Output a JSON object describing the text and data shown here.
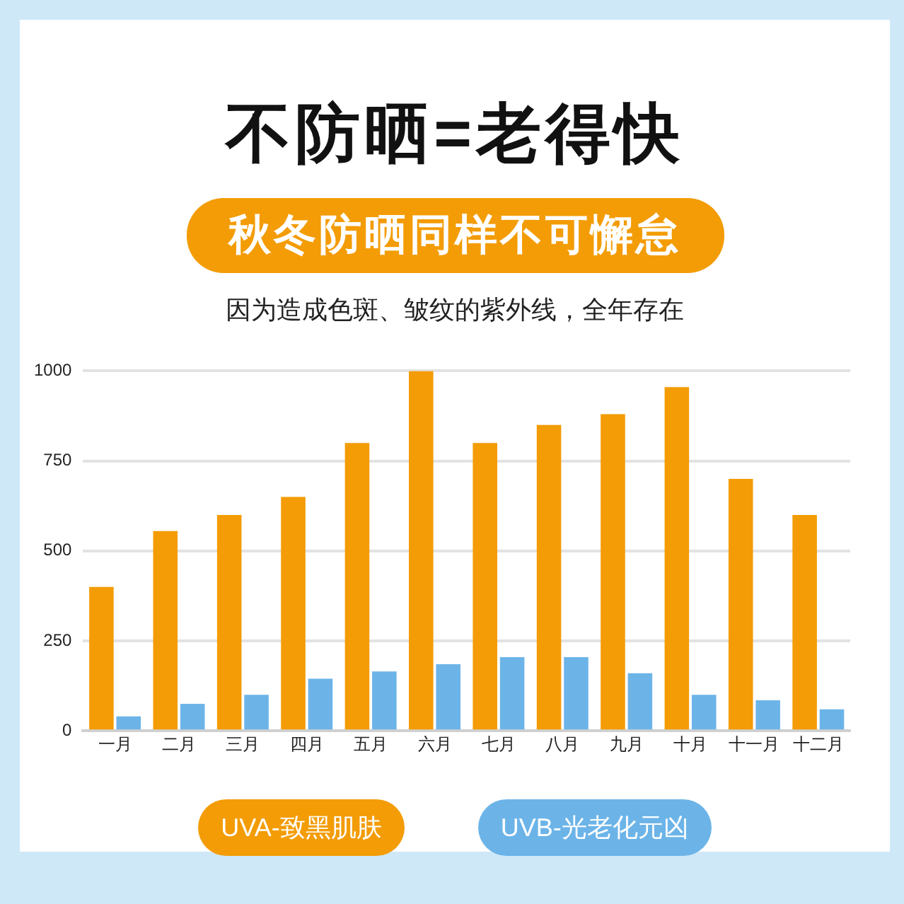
{
  "chart_data": {
    "type": "bar",
    "title": "不防晒=老得快",
    "subtitle": "秋冬防晒同样不可懈怠",
    "annotations": [
      "因为造成色斑、皱纹的紫外线，全年存在"
    ],
    "categories": [
      "一月",
      "二月",
      "三月",
      "四月",
      "五月",
      "六月",
      "七月",
      "八月",
      "九月",
      "十月",
      "十一月",
      "十二月"
    ],
    "series": [
      {
        "name": "UVA-致黑肌肤",
        "color": "#f39c06",
        "values": [
          400,
          555,
          600,
          650,
          800,
          1000,
          800,
          850,
          880,
          955,
          700,
          600
        ]
      },
      {
        "name": "UVB-光老化元凶",
        "color": "#6cb4e8",
        "values": [
          40,
          75,
          100,
          145,
          165,
          185,
          205,
          205,
          160,
          100,
          85,
          60
        ]
      }
    ],
    "ylim": [
      0,
      1000
    ],
    "yticks": [
      0,
      250,
      500,
      750,
      1000
    ],
    "grid": "y",
    "legend": "bottom"
  }
}
